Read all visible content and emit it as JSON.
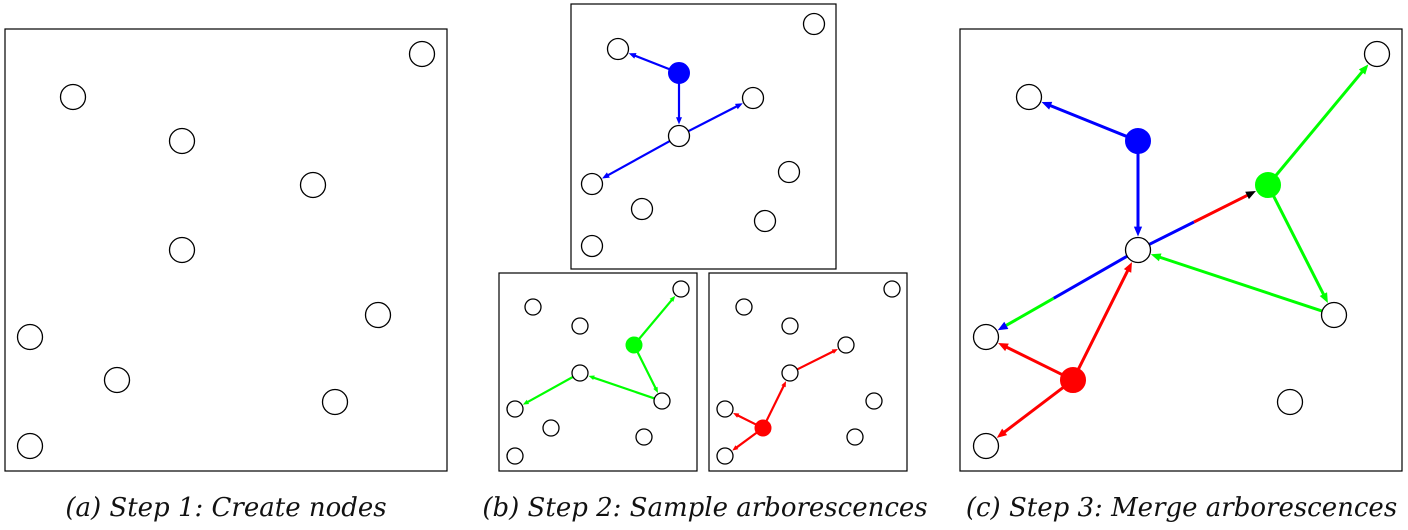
{
  "colors": {
    "blue": "#0000ff",
    "green": "#00ff00",
    "red": "#ff0000",
    "black": "#000000",
    "node_fill": "#ffffff",
    "frame": "#000000"
  },
  "captions": {
    "a": "(a) Step 1: Create nodes",
    "b": "(b) Step 2: Sample arborescences",
    "c": "(c) Step 3: Merge arborescences"
  },
  "panels": [
    "step1",
    "step2-blue",
    "step2-green",
    "step2-red",
    "step3"
  ],
  "roots": {
    "step2-blue": "blue",
    "step2-green": "green",
    "step2-red": "red",
    "step3": [
      "blue",
      "green",
      "red"
    ]
  }
}
